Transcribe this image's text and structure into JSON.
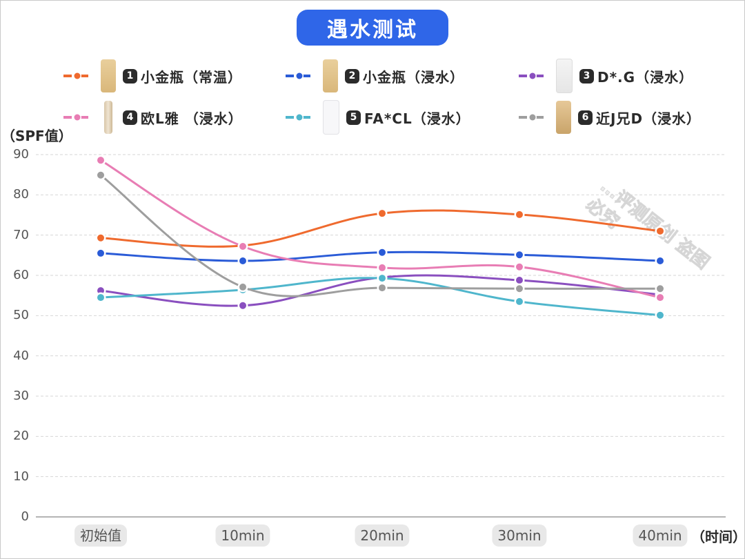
{
  "title": "遇水测试",
  "legend": [
    {
      "num": "1",
      "label": "小金瓶（常温）",
      "color": "#ef6a2e",
      "product_icon": "gold-bottle-icon"
    },
    {
      "num": "2",
      "label": "小金瓶（浸水）",
      "color": "#2a5bd7",
      "product_icon": "gold-bottle-icon"
    },
    {
      "num": "3",
      "label": "D*.G（浸水）",
      "color": "#8a4fbf",
      "product_icon": "white-tube-icon"
    },
    {
      "num": "4",
      "label": "欧L雅 （浸水）",
      "color": "#e87db4",
      "product_icon": "slim-bottle-icon"
    },
    {
      "num": "5",
      "label": "FA*CL（浸水）",
      "color": "#4fb6cc",
      "product_icon": "white-bottle-icon"
    },
    {
      "num": "6",
      "label": "近J兄D（浸水）",
      "color": "#9e9e9e",
      "product_icon": "beige-bottle-icon"
    }
  ],
  "axes": {
    "y_title": "（SPF值）",
    "x_title": "（时间）",
    "y_ticks": [
      "0",
      "10",
      "20",
      "30",
      "40",
      "50",
      "60",
      "70",
      "80",
      "90"
    ],
    "x_ticks": [
      "初始值",
      "10min",
      "20min",
      "30min",
      "40min"
    ]
  },
  "watermark": "…评测原创 盗图必究",
  "chart_data": {
    "type": "line",
    "title": "遇水测试",
    "xlabel": "（时间）",
    "ylabel": "（SPF值）",
    "ylim": [
      0,
      90
    ],
    "grid": true,
    "legend_position": "top",
    "smooth": true,
    "categories": [
      "初始值",
      "10min",
      "20min",
      "30min",
      "40min"
    ],
    "series": [
      {
        "name": "1 小金瓶（常温）",
        "color": "#ef6a2e",
        "values": [
          69.3,
          67.4,
          75.4,
          75.1,
          71.0
        ]
      },
      {
        "name": "2 小金瓶（浸水）",
        "color": "#2a5bd7",
        "values": [
          65.5,
          63.6,
          65.7,
          65.1,
          63.6
        ]
      },
      {
        "name": "3 D*.G（浸水）",
        "color": "#8a4fbf",
        "values": [
          56.2,
          52.5,
          59.5,
          58.8,
          55.2
        ]
      },
      {
        "name": "4 欧L雅（浸水）",
        "color": "#e87db4",
        "values": [
          88.6,
          67.2,
          61.9,
          62.1,
          54.5
        ]
      },
      {
        "name": "5 FA*CL（浸水）",
        "color": "#4fb6cc",
        "values": [
          54.5,
          56.4,
          59.3,
          53.5,
          50.1
        ]
      },
      {
        "name": "6 近J兄D（浸水）",
        "color": "#9e9e9e",
        "values": [
          84.9,
          57.1,
          56.9,
          56.7,
          56.7
        ]
      }
    ]
  }
}
